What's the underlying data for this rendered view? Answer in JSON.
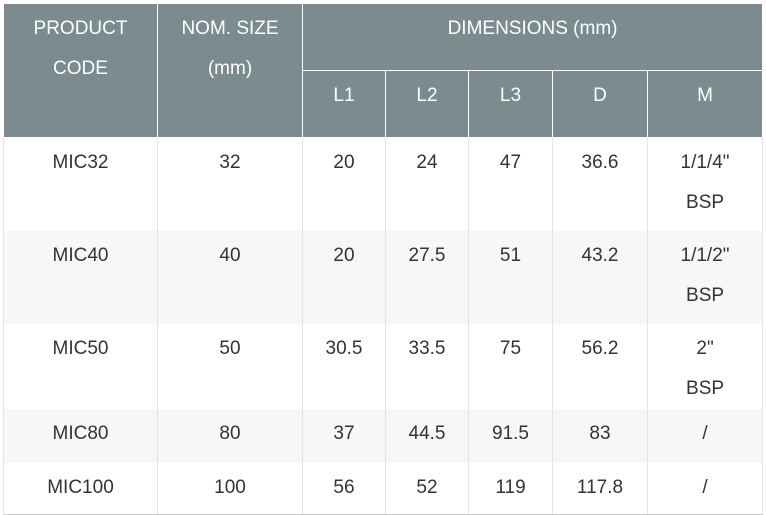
{
  "table": {
    "header": {
      "product_code": "PRODUCT CODE",
      "nom_size": "NOM. SIZE (mm)",
      "dimensions": "DIMENSIONS (mm)",
      "sub": [
        "L1",
        "L2",
        "L3",
        "D",
        "M"
      ]
    },
    "rows": [
      [
        "MIC32",
        "32",
        "20",
        "24",
        "47",
        "36.6",
        "1/1/4\" BSP"
      ],
      [
        "MIC40",
        "40",
        "20",
        "27.5",
        "51",
        "43.2",
        "1/1/2\" BSP"
      ],
      [
        "MIC50",
        "50",
        "30.5",
        "33.5",
        "75",
        "56.2",
        "2\" BSP"
      ],
      [
        "MIC80",
        "80",
        "37",
        "44.5",
        "91.5",
        "83",
        "/"
      ],
      [
        "MIC100",
        "100",
        "56",
        "52",
        "119",
        "117.8",
        "/"
      ]
    ]
  }
}
